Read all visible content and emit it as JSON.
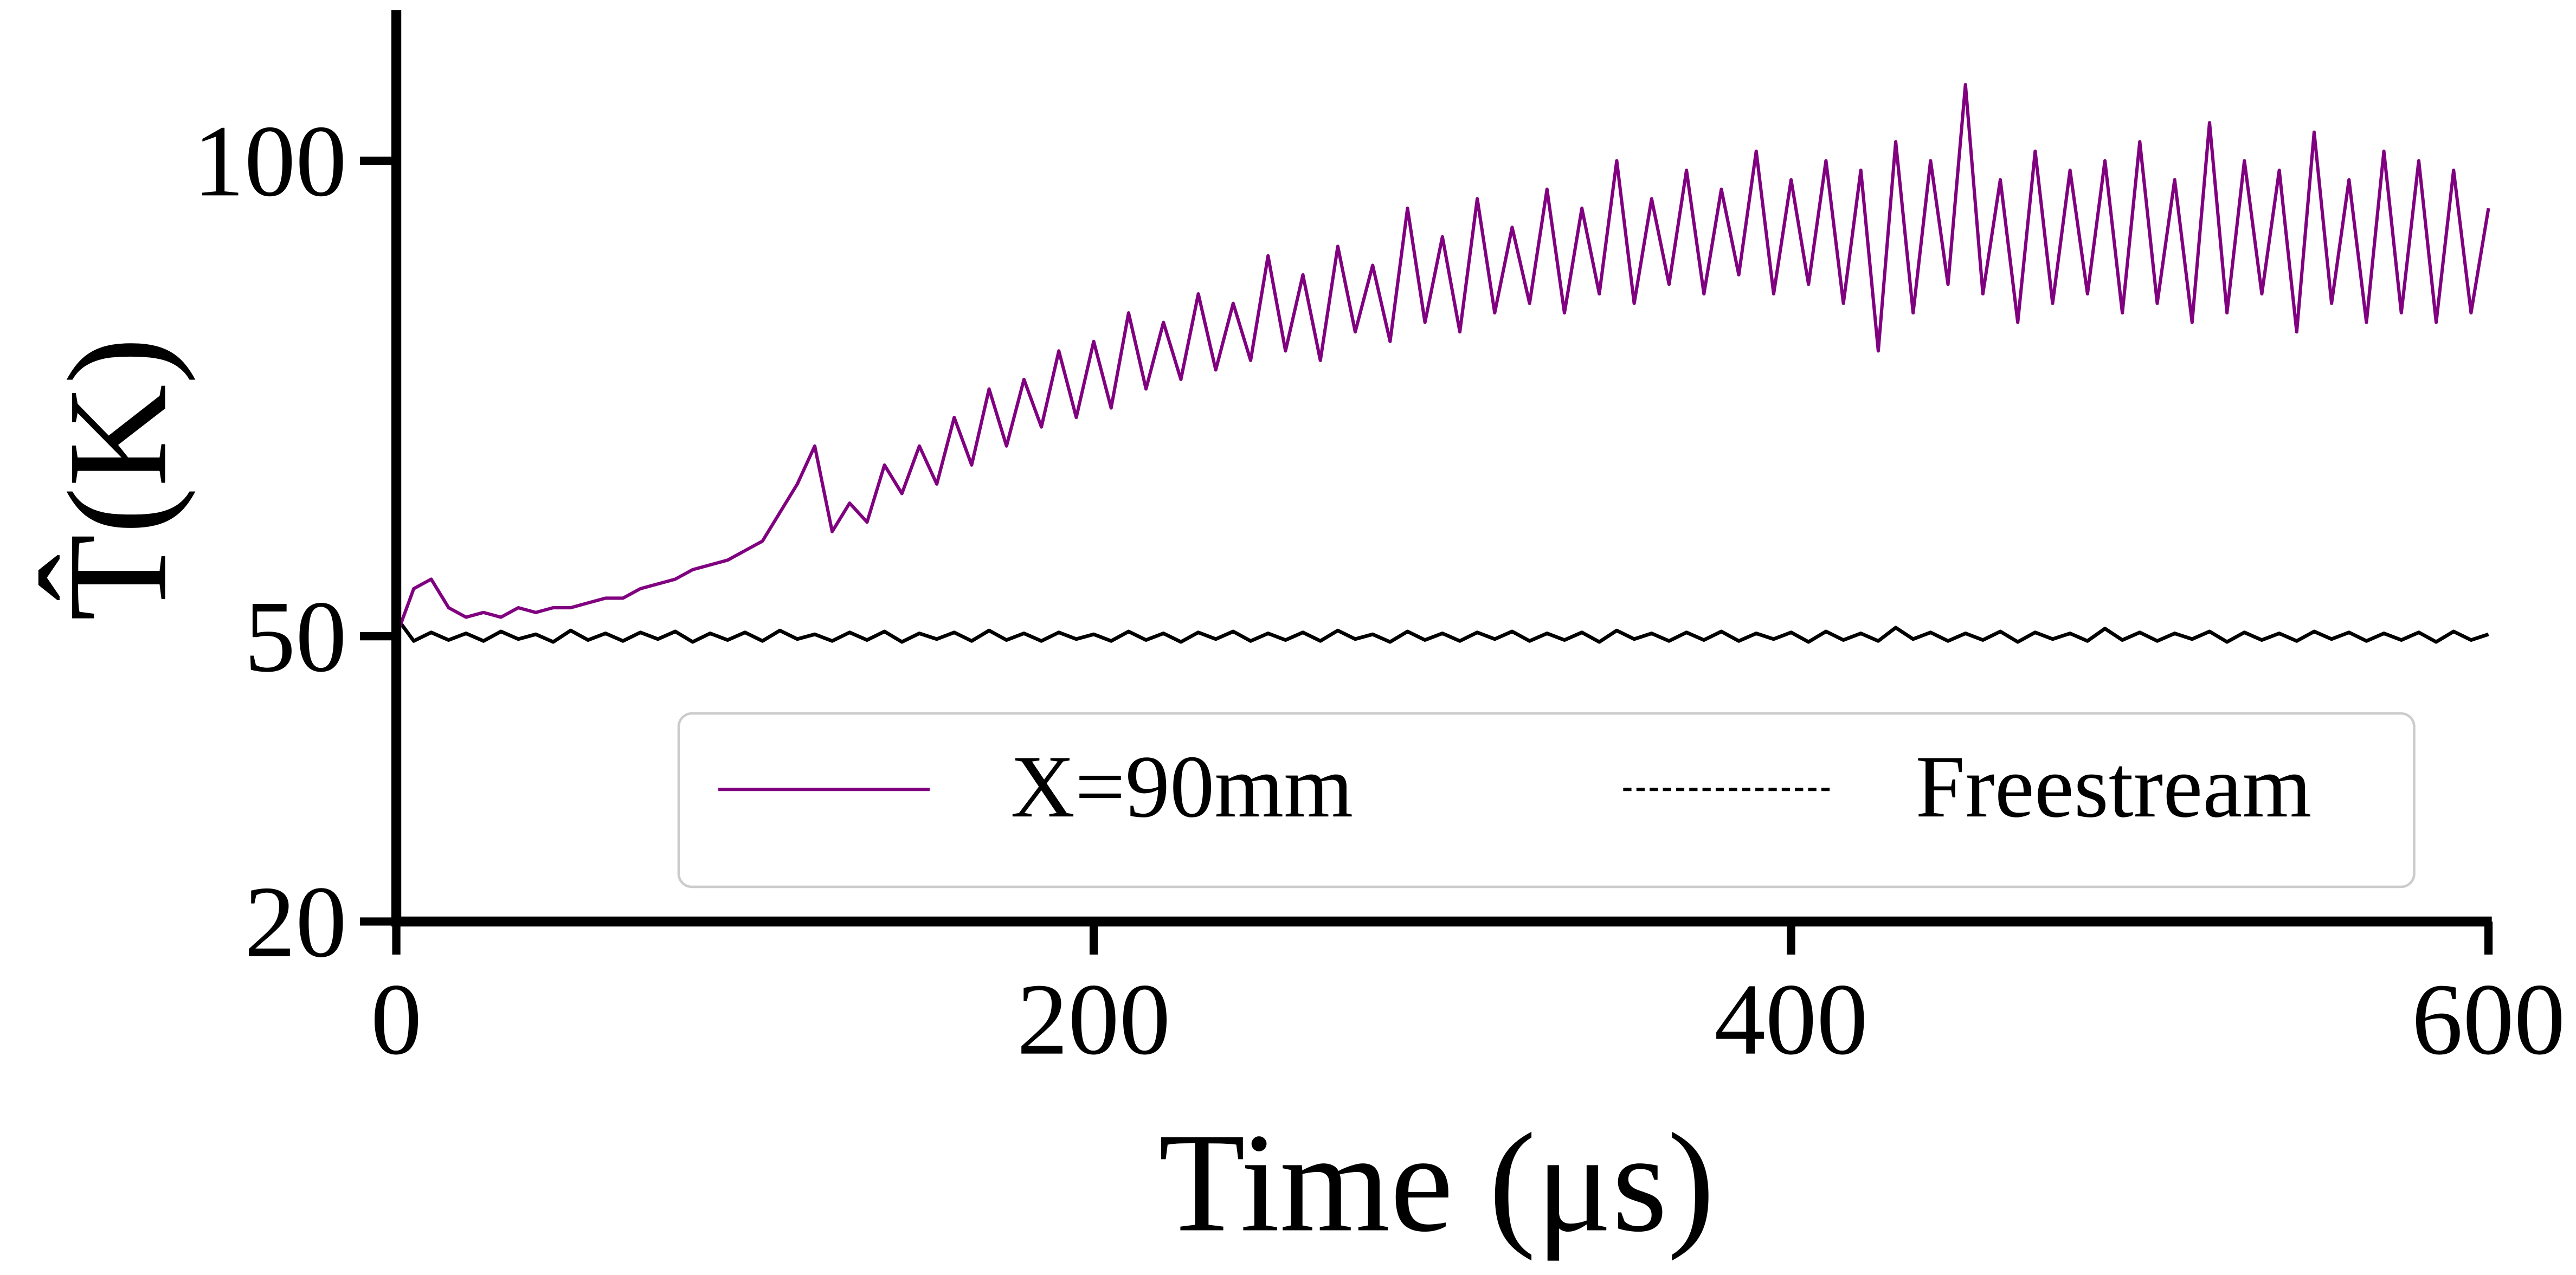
{
  "chart_data": {
    "type": "line",
    "xlabel": "Time (μs)",
    "ylabel": "T̂(K)",
    "x": [
      0,
      5,
      10,
      15,
      20,
      25,
      30,
      35,
      40,
      45,
      50,
      55,
      60,
      65,
      70,
      75,
      80,
      85,
      90,
      95,
      100,
      105,
      110,
      115,
      120,
      125,
      130,
      135,
      140,
      145,
      150,
      155,
      160,
      165,
      170,
      175,
      180,
      185,
      190,
      195,
      200,
      205,
      210,
      215,
      220,
      225,
      230,
      235,
      240,
      245,
      250,
      255,
      260,
      265,
      270,
      275,
      280,
      285,
      290,
      295,
      300,
      305,
      310,
      315,
      320,
      325,
      330,
      335,
      340,
      345,
      350,
      355,
      360,
      365,
      370,
      375,
      380,
      385,
      390,
      395,
      400,
      405,
      410,
      415,
      420,
      425,
      430,
      435,
      440,
      445,
      450,
      455,
      460,
      465,
      470,
      475,
      480,
      485,
      490,
      495,
      500,
      505,
      510,
      515,
      520,
      525,
      530,
      535,
      540,
      545,
      550,
      555,
      560,
      565,
      570,
      575,
      580,
      585,
      590,
      595,
      600
    ],
    "series": [
      {
        "name": "X=90mm",
        "color": "#800080",
        "values": [
          50,
          55,
          56,
          53,
          52,
          52.5,
          52,
          53,
          52.5,
          53,
          53,
          53.5,
          54,
          54,
          55,
          55.5,
          56,
          57,
          57.5,
          58,
          59,
          60,
          63,
          66,
          70,
          61,
          64,
          62,
          68,
          65,
          70,
          66,
          73,
          68,
          76,
          70,
          77,
          72,
          80,
          73,
          81,
          74,
          84,
          76,
          83,
          77,
          86,
          78,
          85,
          79,
          90,
          80,
          88,
          79,
          91,
          82,
          89,
          81,
          95,
          83,
          92,
          82,
          96,
          84,
          93,
          85,
          97,
          84,
          95,
          86,
          100,
          85,
          96,
          87,
          99,
          86,
          97,
          88,
          101,
          86,
          98,
          87,
          100,
          85,
          99,
          80,
          102,
          84,
          100,
          87,
          108,
          86,
          98,
          83,
          101,
          85,
          99,
          86,
          100,
          84,
          102,
          85,
          98,
          83,
          104,
          84,
          100,
          86,
          99,
          82,
          103,
          85,
          98,
          83,
          101,
          84,
          100,
          83,
          99,
          84,
          95
        ]
      },
      {
        "name": "Freestream",
        "color": "#000000",
        "values": [
          52,
          49.5,
          50.4,
          49.6,
          50.3,
          49.5,
          50.5,
          49.7,
          50.2,
          49.4,
          50.6,
          49.6,
          50.3,
          49.5,
          50.4,
          49.7,
          50.5,
          49.4,
          50.3,
          49.6,
          50.4,
          49.5,
          50.6,
          49.7,
          50.2,
          49.5,
          50.4,
          49.6,
          50.5,
          49.4,
          50.3,
          49.7,
          50.4,
          49.5,
          50.6,
          49.6,
          50.3,
          49.5,
          50.4,
          49.7,
          50.2,
          49.5,
          50.5,
          49.6,
          50.3,
          49.4,
          50.4,
          49.7,
          50.5,
          49.5,
          50.3,
          49.6,
          50.4,
          49.5,
          50.6,
          49.7,
          50.2,
          49.4,
          50.5,
          49.6,
          50.3,
          49.5,
          50.4,
          49.7,
          50.5,
          49.5,
          50.3,
          49.6,
          50.4,
          49.4,
          50.6,
          49.7,
          50.3,
          49.5,
          50.4,
          49.6,
          50.5,
          49.5,
          50.3,
          49.7,
          50.4,
          49.4,
          50.5,
          49.6,
          50.3,
          49.5,
          50.9,
          49.7,
          50.4,
          49.5,
          50.3,
          49.6,
          50.5,
          49.4,
          50.4,
          49.7,
          50.3,
          49.5,
          50.8,
          49.6,
          50.4,
          49.5,
          50.3,
          49.7,
          50.5,
          49.4,
          50.4,
          49.6,
          50.3,
          49.5,
          50.5,
          49.7,
          50.4,
          49.5,
          50.3,
          49.6,
          50.4,
          49.4,
          50.5,
          49.6,
          50.2
        ]
      }
    ],
    "xlim": [
      0,
      600
    ],
    "xticks": [
      0,
      200,
      400,
      600
    ],
    "ylim": [
      20,
      115.5
    ],
    "yticks": [
      20,
      50,
      100
    ]
  }
}
